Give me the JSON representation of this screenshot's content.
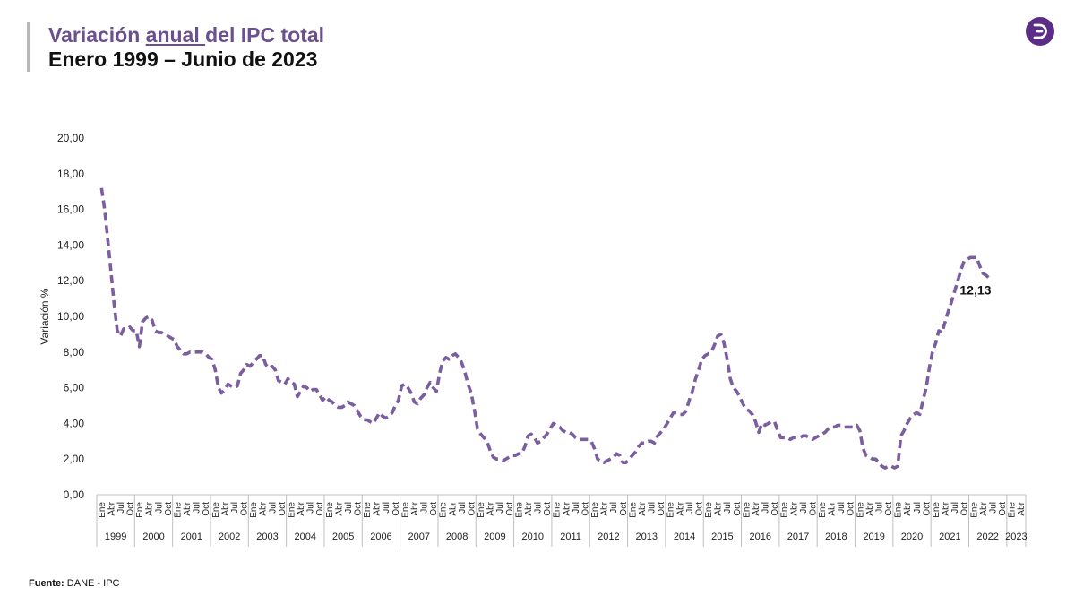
{
  "header": {
    "title_pre": "Variación ",
    "title_underlined": "anual ",
    "title_post": "del IPC total",
    "subtitle": "Enero 1999 – Junio de 2023"
  },
  "logo": {
    "icon": "d-logo-icon",
    "color": "#5b2d86"
  },
  "source": {
    "label": "Fuente:",
    "text": "DANE - IPC"
  },
  "chart_data": {
    "type": "line",
    "ylabel": "Variación %",
    "ylim": [
      0,
      20
    ],
    "yticks": [
      "0,00",
      "2,00",
      "4,00",
      "6,00",
      "8,00",
      "10,00",
      "12,00",
      "14,00",
      "16,00",
      "18,00",
      "20,00"
    ],
    "month_tick_labels": [
      "Ene",
      "Abr",
      "Jul",
      "Oct"
    ],
    "years": [
      "1999",
      "2000",
      "2001",
      "2002",
      "2003",
      "2004",
      "2005",
      "2006",
      "2007",
      "2008",
      "2009",
      "2010",
      "2011",
      "2012",
      "2013",
      "2014",
      "2015",
      "2016",
      "2017",
      "2018",
      "2019",
      "2020",
      "2021",
      "2022",
      "2023"
    ],
    "last_year_ticks": [
      "Ene",
      "Abr"
    ],
    "line_color": "#7b5e9e",
    "line_style": "dashed",
    "end_label": "12,13",
    "series": [
      {
        "values": [
          17.2,
          16.0,
          14.3,
          12.5,
          10.7,
          9.2,
          8.9,
          9.3,
          9.3,
          9.4,
          9.2,
          9.2,
          8.3,
          9.7,
          9.9,
          10.0,
          9.8,
          9.2,
          9.1,
          9.1,
          9.0,
          8.9,
          8.8,
          8.7,
          8.3,
          8.1,
          7.9,
          7.9,
          8.0,
          8.0,
          8.0,
          8.0,
          8.0,
          7.9,
          7.7,
          7.6,
          7.0,
          6.0,
          5.7,
          5.9,
          6.2,
          6.1,
          6.0,
          6.1,
          6.8,
          7.0,
          7.3,
          7.2,
          7.4,
          7.6,
          7.8,
          7.8,
          7.3,
          7.1,
          7.2,
          7.0,
          6.4,
          6.3,
          6.2,
          6.5,
          6.3,
          6.2,
          5.5,
          5.8,
          6.1,
          6.0,
          5.8,
          5.9,
          5.9,
          5.6,
          5.3,
          5.5,
          5.3,
          5.2,
          5.0,
          4.9,
          4.9,
          5.0,
          5.2,
          5.1,
          5.0,
          4.7,
          4.4,
          4.2,
          4.2,
          4.1,
          4.0,
          4.3,
          4.6,
          4.4,
          4.3,
          4.4,
          4.6,
          5.0,
          5.3,
          6.1,
          6.2,
          6.0,
          5.7,
          5.2,
          5.1,
          5.4,
          5.6,
          6.0,
          6.3,
          6.0,
          5.8,
          6.8,
          7.5,
          7.7,
          7.6,
          7.8,
          7.9,
          7.7,
          7.4,
          6.9,
          6.2,
          5.7,
          4.8,
          3.7,
          3.4,
          3.2,
          3.0,
          2.5,
          2.1,
          2.0,
          2.0,
          1.9,
          2.0,
          2.1,
          2.2,
          2.2,
          2.3,
          2.3,
          2.7,
          3.3,
          3.4,
          3.2,
          2.9,
          3.0,
          3.2,
          3.4,
          3.7,
          4.0,
          3.9,
          3.8,
          3.6,
          3.5,
          3.5,
          3.4,
          3.2,
          3.1,
          3.1,
          3.1,
          3.1,
          3.0,
          2.6,
          2.0,
          1.9,
          1.8,
          1.9,
          2.0,
          2.1,
          2.3,
          2.2,
          1.8,
          1.8,
          2.0,
          2.2,
          2.4,
          2.7,
          2.9,
          2.9,
          3.0,
          3.0,
          2.9,
          3.3,
          3.5,
          3.7,
          4.0,
          4.3,
          4.6,
          4.6,
          4.5,
          4.5,
          4.7,
          5.3,
          5.8,
          6.5,
          7.0,
          7.6,
          7.8,
          7.9,
          8.0,
          8.4,
          8.9,
          9.0,
          8.5,
          7.6,
          6.5,
          6.0,
          5.8,
          5.5,
          5.1,
          4.8,
          4.7,
          4.5,
          4.1,
          3.5,
          4.0,
          3.9,
          4.0,
          4.1,
          4.1,
          3.6,
          3.2,
          3.2,
          3.2,
          3.1,
          3.2,
          3.2,
          3.2,
          3.3,
          3.3,
          3.2,
          3.1,
          3.2,
          3.3,
          3.4,
          3.5,
          3.7,
          3.8,
          3.8,
          3.9,
          3.9,
          3.8,
          3.8,
          3.8,
          3.8,
          3.9,
          3.6,
          2.6,
          2.2,
          2.1,
          2.0,
          2.0,
          1.8,
          1.6,
          1.5,
          1.6,
          1.6,
          1.5,
          1.6,
          3.3,
          3.6,
          4.0,
          4.3,
          4.5,
          4.6,
          4.5,
          5.3,
          6.0,
          7.1,
          8.0,
          8.5,
          9.2,
          9.1,
          9.7,
          10.3,
          10.8,
          11.4,
          12.0,
          12.6,
          13.1,
          13.2,
          13.3,
          13.3,
          13.3,
          12.8,
          12.4,
          12.3,
          12.13
        ]
      }
    ]
  }
}
